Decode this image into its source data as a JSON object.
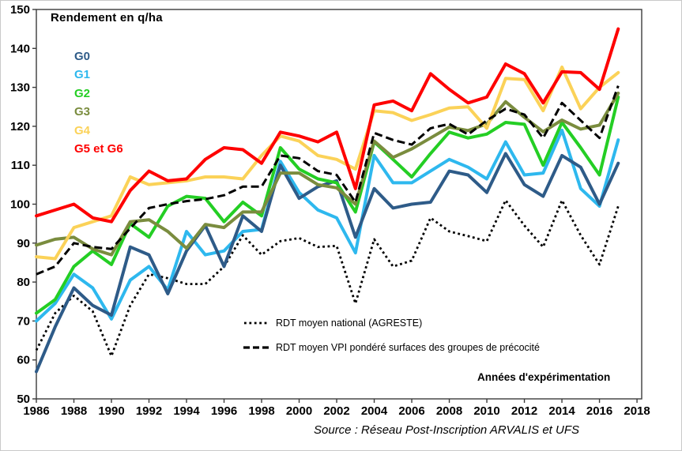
{
  "chart_data": {
    "type": "line",
    "title": "Rendement  en q/ha",
    "xlabel": "Années d'expérimentation",
    "source": "Source : Réseau Post-Inscription ARVALIS et UFS",
    "x": [
      1986,
      1987,
      1988,
      1989,
      1990,
      1991,
      1992,
      1993,
      1994,
      1995,
      1996,
      1997,
      1998,
      1999,
      2000,
      2001,
      2002,
      2003,
      2004,
      2005,
      2006,
      2007,
      2008,
      2009,
      2010,
      2011,
      2012,
      2013,
      2014,
      2015,
      2016,
      2017
    ],
    "x_ticks": [
      1986,
      1988,
      1990,
      1992,
      1994,
      1996,
      1998,
      2000,
      2002,
      2004,
      2006,
      2008,
      2010,
      2012,
      2014,
      2016,
      2018
    ],
    "y_ticks": [
      50,
      60,
      70,
      80,
      90,
      100,
      110,
      120,
      130,
      140,
      150
    ],
    "ylim": [
      50,
      150
    ],
    "grid": false,
    "legend_position": "inside-top-left",
    "series": [
      {
        "name": "RDT moyen national (AGRESTE)",
        "color": "#000000",
        "style": "dotted",
        "values": [
          62.5,
          72,
          76.5,
          72.5,
          61,
          74,
          82,
          81,
          79.5,
          79.5,
          84,
          92,
          87,
          90.5,
          91.3,
          89,
          89.3,
          74.5,
          91,
          84,
          85.5,
          96.5,
          93,
          91.8,
          90.5,
          101,
          94.5,
          89,
          101,
          92,
          84.5,
          99.5
        ]
      },
      {
        "name": "G1",
        "color": "#2EB8EE",
        "style": "solid",
        "values": [
          70,
          74.5,
          82,
          78.5,
          70.5,
          80.5,
          84,
          78,
          93,
          87,
          88,
          93,
          93.5,
          111,
          103,
          98.5,
          96.5,
          87.5,
          112.5,
          105.5,
          105.5,
          108.5,
          111.5,
          109.5,
          106.5,
          116,
          107.5,
          108,
          119,
          104,
          99.5,
          116.5
        ]
      },
      {
        "name": "G0",
        "color": "#2E5B88",
        "style": "solid",
        "values": [
          57,
          68.5,
          78.5,
          74,
          71.5,
          89,
          87,
          77,
          88,
          94.5,
          84,
          97,
          93,
          110,
          101.5,
          104.5,
          106,
          91.5,
          104,
          99,
          100,
          100.5,
          108.5,
          107.5,
          103,
          113,
          105,
          102,
          112.5,
          109.5,
          100,
          110.5
        ]
      },
      {
        "name": "G2",
        "color": "#24CE24",
        "style": "solid",
        "values": [
          72,
          75.5,
          84,
          88,
          84.5,
          95,
          91.5,
          99.5,
          102,
          101.5,
          95.5,
          100.5,
          97,
          114.5,
          109,
          106.5,
          105.5,
          98,
          116,
          111.5,
          107,
          113,
          118.5,
          117,
          118,
          121,
          120.5,
          110,
          121,
          114.5,
          107.5,
          127.5
        ]
      },
      {
        "name": "G3",
        "color": "#7A8C3E",
        "style": "solid",
        "values": [
          89.5,
          91,
          91.5,
          88.5,
          87,
          95.5,
          96,
          93,
          88.7,
          94.8,
          94,
          98,
          98,
          108,
          108,
          105,
          104.2,
          100,
          116.2,
          112,
          114.2,
          117,
          119.8,
          118.9,
          120.6,
          126.3,
          122.3,
          118.6,
          121.6,
          119.3,
          120.3,
          128.5
        ]
      },
      {
        "name": "G4",
        "color": "#FBD258",
        "style": "solid",
        "values": [
          86.5,
          86,
          94,
          95.5,
          97,
          107,
          105,
          105.5,
          106,
          107,
          107,
          106.5,
          112.5,
          117.5,
          116.2,
          112.5,
          111.5,
          109,
          124,
          123.5,
          121.5,
          123,
          124.7,
          125,
          119.5,
          132.3,
          132,
          124,
          135.2,
          124.5,
          130,
          133.8
        ]
      },
      {
        "name": "RDT moyen VPI pondéré surfaces des groupes de précocité",
        "color": "#000000",
        "style": "dashed",
        "values": [
          82,
          84,
          90,
          89,
          88.5,
          93.8,
          99,
          100,
          100.8,
          101.3,
          102.3,
          104.5,
          104.5,
          112.5,
          111.8,
          108.5,
          107.5,
          100.5,
          118.3,
          116.5,
          115.3,
          119.5,
          120.6,
          117.9,
          121.5,
          124.5,
          123,
          117,
          126,
          121.5,
          117,
          130.4
        ]
      },
      {
        "name": "G5 et G6",
        "color": "#FE0000",
        "style": "solid",
        "values": [
          97,
          98.5,
          100,
          96.5,
          95.5,
          103.5,
          108.5,
          106,
          106.5,
          111.5,
          114.5,
          114,
          110.5,
          118.5,
          117.5,
          116,
          118.5,
          104,
          125.5,
          126.5,
          124,
          133.5,
          129.5,
          126,
          127.5,
          136,
          133.5,
          126,
          134,
          133.8,
          129.5,
          145
        ]
      }
    ],
    "g_legend_order": [
      "G0",
      "G1",
      "G2",
      "G3",
      "G4",
      "G5 et G6"
    ]
  }
}
